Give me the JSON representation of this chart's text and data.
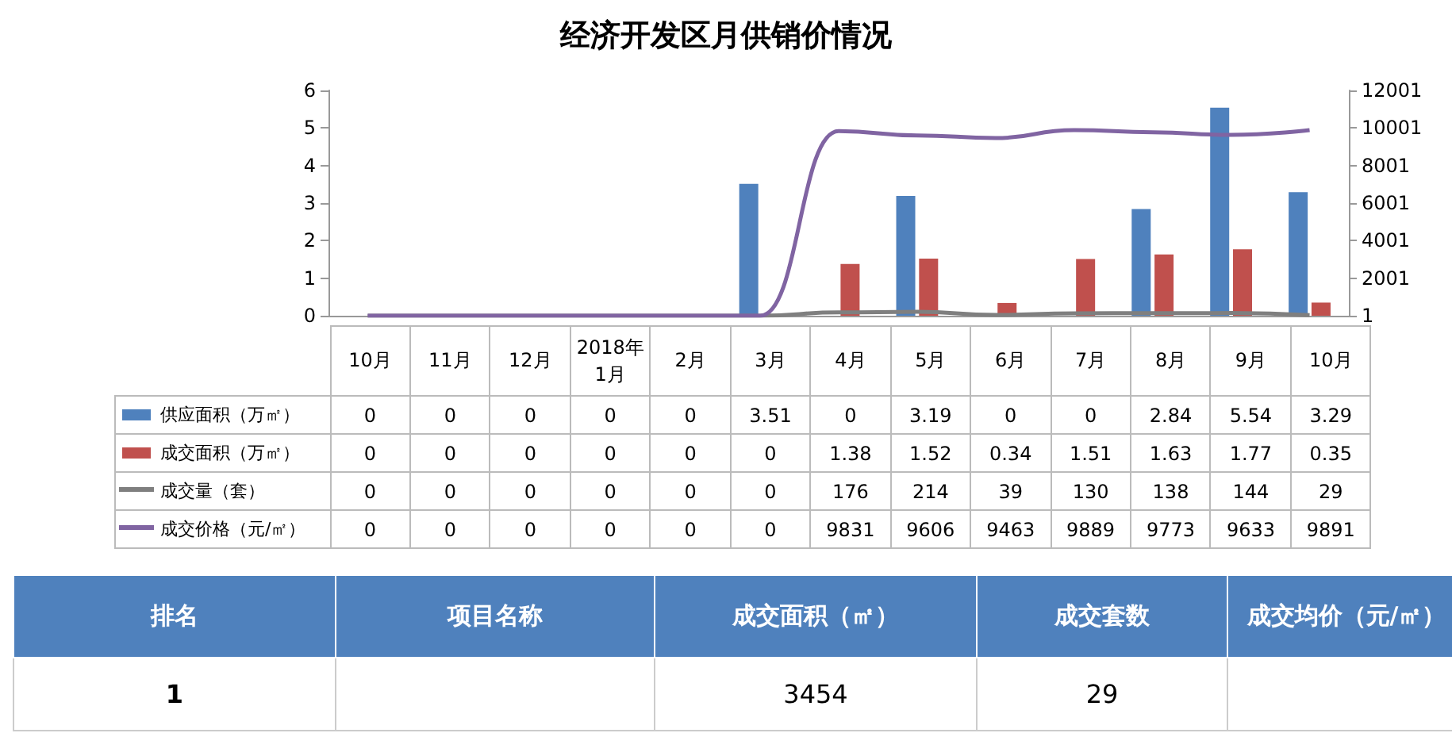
{
  "chart_data": {
    "type": "bar",
    "title": "经济开发区月供销价情况",
    "categories": [
      "10月",
      "11月",
      "12月",
      "2018年1月",
      "2月",
      "3月",
      "4月",
      "5月",
      "6月",
      "7月",
      "8月",
      "9月",
      "10月"
    ],
    "series": [
      {
        "name": "供应面积（万㎡）",
        "color": "#4f81bd",
        "values": [
          0,
          0,
          0,
          0,
          0,
          3.51,
          0,
          3.19,
          0,
          0,
          2.84,
          5.54,
          3.29
        ]
      },
      {
        "name": "成交面积（万㎡）",
        "color": "#c0504d",
        "values": [
          0,
          0,
          0,
          0,
          0,
          0,
          1.38,
          1.52,
          0.34,
          1.51,
          1.63,
          1.77,
          0.35
        ]
      },
      {
        "name": "成交量（套）",
        "type": "line",
        "axis": "y2",
        "color": "#7f7f7f",
        "values": [
          0,
          0,
          0,
          0,
          0,
          0,
          176,
          214,
          39,
          130,
          138,
          144,
          29
        ]
      },
      {
        "name": "成交价格（元/㎡）",
        "type": "line",
        "axis": "y2",
        "color": "#8064a2",
        "values": [
          0,
          0,
          0,
          0,
          0,
          0,
          9831,
          9606,
          9463,
          9889,
          9773,
          9633,
          9891
        ]
      }
    ],
    "ylim": [
      0,
      6
    ],
    "yticks": [
      0,
      1,
      2,
      3,
      4,
      5,
      6
    ],
    "y2lim": [
      0,
      12001
    ],
    "y2ticks": [
      1,
      2001,
      4001,
      6001,
      8001,
      10001,
      12001
    ],
    "marker": "none",
    "legend": "bottom",
    "data_labels": true,
    "annotations": [
      "排名",
      "项目名称",
      "成交面积（㎡）",
      "成交套数",
      "成交均价（元/㎡）",
      "1",
      "3454",
      "29"
    ]
  }
}
